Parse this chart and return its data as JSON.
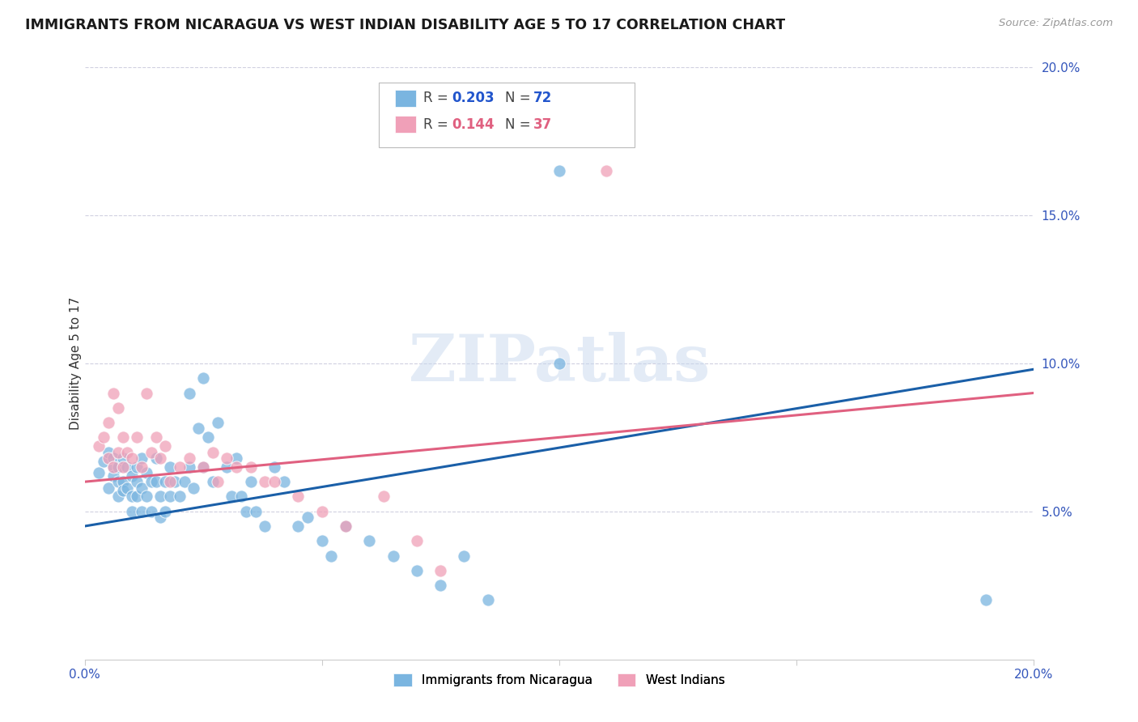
{
  "title": "IMMIGRANTS FROM NICARAGUA VS WEST INDIAN DISABILITY AGE 5 TO 17 CORRELATION CHART",
  "source": "Source: ZipAtlas.com",
  "ylabel": "Disability Age 5 to 17",
  "xmin": 0.0,
  "xmax": 0.2,
  "ymin": 0.0,
  "ymax": 0.2,
  "nicaragua_color": "#7ab5e0",
  "west_indian_color": "#f0a0b8",
  "nicaragua_line_color": "#1a5fa8",
  "west_indian_line_color": "#e06080",
  "watermark_text": "ZIPatlas",
  "background_color": "#ffffff",
  "grid_color": "#d0d0e0",
  "nicaragua_x": [
    0.003,
    0.004,
    0.005,
    0.005,
    0.006,
    0.006,
    0.006,
    0.007,
    0.007,
    0.007,
    0.008,
    0.008,
    0.008,
    0.009,
    0.009,
    0.01,
    0.01,
    0.01,
    0.011,
    0.011,
    0.011,
    0.012,
    0.012,
    0.012,
    0.013,
    0.013,
    0.014,
    0.014,
    0.015,
    0.015,
    0.016,
    0.016,
    0.017,
    0.017,
    0.018,
    0.018,
    0.019,
    0.02,
    0.021,
    0.022,
    0.022,
    0.023,
    0.024,
    0.025,
    0.025,
    0.026,
    0.027,
    0.028,
    0.03,
    0.031,
    0.032,
    0.033,
    0.034,
    0.035,
    0.036,
    0.038,
    0.04,
    0.042,
    0.045,
    0.047,
    0.05,
    0.052,
    0.055,
    0.06,
    0.065,
    0.07,
    0.075,
    0.08,
    0.085,
    0.1,
    0.1,
    0.19
  ],
  "nicaragua_y": [
    0.063,
    0.067,
    0.058,
    0.07,
    0.065,
    0.062,
    0.068,
    0.055,
    0.065,
    0.06,
    0.06,
    0.057,
    0.068,
    0.065,
    0.058,
    0.062,
    0.05,
    0.055,
    0.065,
    0.06,
    0.055,
    0.068,
    0.058,
    0.05,
    0.063,
    0.055,
    0.06,
    0.05,
    0.068,
    0.06,
    0.055,
    0.048,
    0.06,
    0.05,
    0.065,
    0.055,
    0.06,
    0.055,
    0.06,
    0.065,
    0.09,
    0.058,
    0.078,
    0.065,
    0.095,
    0.075,
    0.06,
    0.08,
    0.065,
    0.055,
    0.068,
    0.055,
    0.05,
    0.06,
    0.05,
    0.045,
    0.065,
    0.06,
    0.045,
    0.048,
    0.04,
    0.035,
    0.045,
    0.04,
    0.035,
    0.03,
    0.025,
    0.035,
    0.02,
    0.1,
    0.165,
    0.02
  ],
  "west_indian_x": [
    0.003,
    0.004,
    0.005,
    0.005,
    0.006,
    0.006,
    0.007,
    0.007,
    0.008,
    0.008,
    0.009,
    0.01,
    0.011,
    0.012,
    0.013,
    0.014,
    0.015,
    0.016,
    0.017,
    0.018,
    0.02,
    0.022,
    0.025,
    0.027,
    0.028,
    0.03,
    0.032,
    0.035,
    0.038,
    0.04,
    0.045,
    0.05,
    0.055,
    0.063,
    0.07,
    0.075,
    0.11
  ],
  "west_indian_y": [
    0.072,
    0.075,
    0.08,
    0.068,
    0.09,
    0.065,
    0.085,
    0.07,
    0.075,
    0.065,
    0.07,
    0.068,
    0.075,
    0.065,
    0.09,
    0.07,
    0.075,
    0.068,
    0.072,
    0.06,
    0.065,
    0.068,
    0.065,
    0.07,
    0.06,
    0.068,
    0.065,
    0.065,
    0.06,
    0.06,
    0.055,
    0.05,
    0.045,
    0.055,
    0.04,
    0.03,
    0.165
  ]
}
